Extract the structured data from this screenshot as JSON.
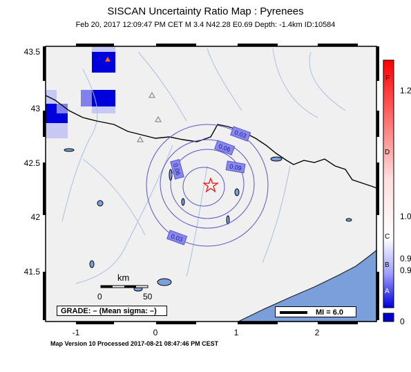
{
  "title": "SISCAN Uncertainty Ratio Map : Pyrenees",
  "subtitle": "Feb 20, 2017 12:09:47 PM CET   M 3.4   N42.28 E0.69   Depth: -1.4km   ID:10584",
  "footer": "Map Version 10 Processed 2017-08-21 08:47:46 PM CEST",
  "axes": {
    "lat_ticks": [
      "43.5",
      "43",
      "42.5",
      "42",
      "41.5"
    ],
    "lon_ticks": [
      "-1",
      "0",
      "1",
      "2"
    ]
  },
  "scale_bar": {
    "title": "km",
    "start": "0",
    "end": "50"
  },
  "grade_box": "GRADE: – (Mean sigma: –)",
  "mi_legend": "MI = 6.0",
  "contours": [
    "0.03",
    "0.06",
    "0.09",
    "0.06",
    "0.03"
  ],
  "colorbar": {
    "grades": [
      "F",
      "D",
      "C",
      "B",
      "A"
    ],
    "values": [
      "1.2",
      "1.0",
      "0.9",
      "0.9",
      "0"
    ],
    "colors": {
      "top": "#ff0000",
      "middle": "#ffffff",
      "bottom": "#0000dd",
      "nodata": "#0000cc"
    }
  },
  "epicenter": {
    "lat": 42.28,
    "lon": 0.69,
    "symbol": "star",
    "color": "#ff0000"
  },
  "colors": {
    "land": "#f0f0f0",
    "sea": "#7b9fdb",
    "grid_high": "#0000dd",
    "grid_mid": "#8080ee",
    "grid_low": "#c8c8f4",
    "rivers": "#a8c0dc"
  }
}
